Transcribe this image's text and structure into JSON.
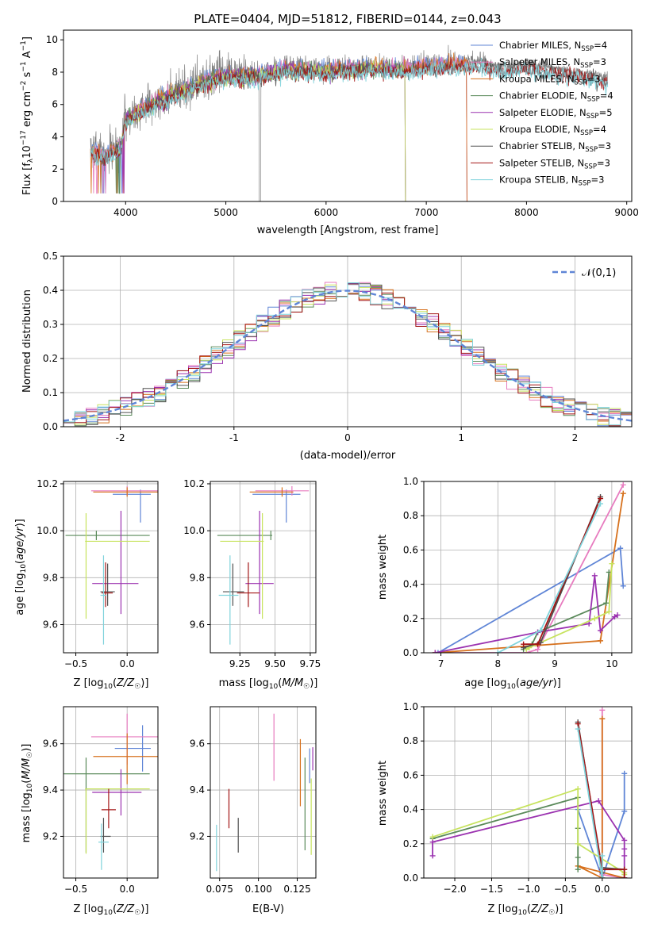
{
  "figure_title": "PLATE=0404, MJD=51812, FIBERID=0144, z=0.043",
  "palette": [
    "#5f85d6",
    "#e77bbf",
    "#d6701c",
    "#5a8a5a",
    "#9b32b0",
    "#c7e35e",
    "#505050",
    "#a31515",
    "#7fd3db"
  ],
  "chart_data": [
    {
      "id": "spectrum",
      "type": "line",
      "title": "PLATE=0404, MJD=51812, FIBERID=0144, z=0.043",
      "xlabel": "wavelength [Angstrom, rest frame]",
      "ylabel": "Flux [f_λ 10^-17 erg cm^-2 s^-1 A^-1]",
      "xlim": [
        3380,
        9050
      ],
      "ylim": [
        0,
        10.6
      ],
      "xticks": [
        "4000",
        "5000",
        "6000",
        "7000",
        "8000",
        "9000"
      ],
      "yticks": [
        "0",
        "2",
        "4",
        "6",
        "8",
        "10"
      ],
      "data_series": {
        "name": "data",
        "color": "#808080",
        "x_range": [
          3650,
          8810
        ]
      },
      "continuum_anchors": {
        "x": [
          3650,
          3800,
          3950,
          4000,
          4100,
          4300,
          4500,
          4800,
          5000,
          5300,
          5600,
          6000,
          6400,
          6800,
          7000,
          7300,
          7500,
          7800,
          8000,
          8400,
          8800
        ],
        "y": [
          3.3,
          3.0,
          3.5,
          5.2,
          5.6,
          6.3,
          6.8,
          7.6,
          7.9,
          7.9,
          8.3,
          8.2,
          8.4,
          8.3,
          8.5,
          8.6,
          8.7,
          8.3,
          8.5,
          8.1,
          7.7
        ]
      },
      "legend": [
        {
          "prefix": "Chabrier MILES, N",
          "sub": "SSP",
          "suffix": "=4"
        },
        {
          "prefix": "Salpeter MILES, N",
          "sub": "SSP",
          "suffix": "=3"
        },
        {
          "prefix": "Kroupa MILES, N",
          "sub": "SSP",
          "suffix": "=3"
        },
        {
          "prefix": "Chabrier ELODIE, N",
          "sub": "SSP",
          "suffix": "=4"
        },
        {
          "prefix": "Salpeter ELODIE, N",
          "sub": "SSP",
          "suffix": "=5"
        },
        {
          "prefix": "Kroupa ELODIE, N",
          "sub": "SSP",
          "suffix": "=4"
        },
        {
          "prefix": "Chabrier STELIB, N",
          "sub": "SSP",
          "suffix": "=3"
        },
        {
          "prefix": "Salpeter STELIB, N",
          "sub": "SSP",
          "suffix": "=3"
        },
        {
          "prefix": "Kroupa STELIB, N",
          "sub": "SSP",
          "suffix": "=3"
        }
      ],
      "legend_placement": "upper-right",
      "model_x_range": [
        [
          3650,
          7420
        ],
        [
          3650,
          7420
        ],
        [
          3650,
          7420
        ],
        [
          3900,
          6800
        ],
        [
          3900,
          6800
        ],
        [
          3900,
          6800
        ],
        [
          3650,
          8810
        ],
        [
          3650,
          8810
        ],
        [
          3650,
          8810
        ]
      ]
    },
    {
      "id": "residuals",
      "type": "histogram",
      "xlabel": "(data-model)/error",
      "ylabel": "Normed distribution",
      "xlim": [
        -2.5,
        2.5
      ],
      "ylim": [
        0,
        0.5
      ],
      "xticks": [
        "-2",
        "-1",
        "0",
        "1",
        "2"
      ],
      "yticks": [
        "0.0",
        "0.1",
        "0.2",
        "0.3",
        "0.4",
        "0.5"
      ],
      "grid": true,
      "bins": {
        "start": -2.5,
        "width": 0.1,
        "count": 50
      },
      "reference": {
        "name": "𝒩(0,1)",
        "style": "dashed",
        "color": "#5f85d6"
      },
      "legend_placement": "upper-right"
    },
    {
      "id": "age-vs-Z",
      "type": "errorbar",
      "xlabel": "Z [log10(Z/Z☉)]",
      "ylabel": "age [log10(age/yr)]",
      "xlim": [
        -0.62,
        0.3
      ],
      "ylim": [
        9.48,
        10.21
      ],
      "xticks": [
        -0.5,
        0.0
      ],
      "yticks": [
        9.6,
        9.8,
        10.0,
        10.2
      ],
      "xtick_labels": [
        "−0.5",
        "0.0"
      ],
      "ytick_labels": [
        "9.6",
        "9.8",
        "10.0",
        "10.2"
      ],
      "grid": true,
      "points": [
        {
          "x": 0.13,
          "y": 10.155,
          "xerr": [
            0.27,
            0.1
          ],
          "yerr": [
            0.12,
            0.02
          ]
        },
        {
          "x": 0.0,
          "y": 10.17,
          "xerr": [
            0.35,
            0.32
          ],
          "yerr": [
            0.02,
            0.02
          ]
        },
        {
          "x": 0.0,
          "y": 10.165,
          "xerr": [
            0.33,
            0.31
          ],
          "yerr": [
            0.02,
            0.02
          ]
        },
        {
          "x": -0.3,
          "y": 9.98,
          "xerr": [
            0.3,
            0.52
          ],
          "yerr": [
            0.02,
            0.02
          ]
        },
        {
          "x": -0.06,
          "y": 9.775,
          "xerr": [
            0.28,
            0.17
          ],
          "yerr": [
            0.13,
            0.31
          ]
        },
        {
          "x": -0.4,
          "y": 9.955,
          "xerr": [
            0.01,
            0.62
          ],
          "yerr": [
            0.33,
            0.12
          ]
        },
        {
          "x": -0.19,
          "y": 9.74,
          "xerr": [
            0.07,
            0.07
          ],
          "yerr": [
            0.06,
            0.12
          ]
        },
        {
          "x": -0.21,
          "y": 9.735,
          "xerr": [
            0.04,
            0.07
          ],
          "yerr": [
            0.06,
            0.13
          ]
        },
        {
          "x": -0.23,
          "y": 9.725,
          "xerr": [
            0.03,
            0.03
          ],
          "yerr": [
            0.21,
            0.17
          ]
        }
      ]
    },
    {
      "id": "age-vs-mass",
      "type": "errorbar",
      "xlabel": "mass [log10(M/M☉)]",
      "ylabel": "",
      "xlim": [
        9.04,
        9.79
      ],
      "ylim": [
        9.48,
        10.21
      ],
      "xticks": [
        9.25,
        9.5,
        9.75
      ],
      "yticks": [
        9.6,
        9.8,
        10.0,
        10.2
      ],
      "xtick_labels": [
        "9.25",
        "9.50",
        "9.75"
      ],
      "ytick_labels": [
        "9.6",
        "9.8",
        "10.0",
        "10.2"
      ],
      "grid": true,
      "points": [
        {
          "x": 9.58,
          "y": 10.155,
          "xerr": [
            0.24,
            0.1
          ],
          "yerr": [
            0.12,
            0.02
          ]
        },
        {
          "x": 9.62,
          "y": 10.17,
          "xerr": [
            0.26,
            0.12
          ],
          "yerr": [
            0.02,
            0.02
          ]
        },
        {
          "x": 9.55,
          "y": 10.165,
          "xerr": [
            0.23,
            0.08
          ],
          "yerr": [
            0.02,
            0.02
          ]
        },
        {
          "x": 9.47,
          "y": 9.98,
          "xerr": [
            0.38,
            0.01
          ],
          "yerr": [
            0.02,
            0.02
          ]
        },
        {
          "x": 9.39,
          "y": 9.775,
          "xerr": [
            0.1,
            0.1
          ],
          "yerr": [
            0.13,
            0.31
          ]
        },
        {
          "x": 9.41,
          "y": 9.955,
          "xerr": [
            0.3,
            0.01
          ],
          "yerr": [
            0.33,
            0.12
          ]
        },
        {
          "x": 9.2,
          "y": 9.74,
          "xerr": [
            0.07,
            0.08
          ],
          "yerr": [
            0.06,
            0.12
          ]
        },
        {
          "x": 9.31,
          "y": 9.735,
          "xerr": [
            0.08,
            0.08
          ],
          "yerr": [
            0.06,
            0.13
          ]
        },
        {
          "x": 9.18,
          "y": 9.725,
          "xerr": [
            0.08,
            0.06
          ],
          "yerr": [
            0.21,
            0.17
          ]
        }
      ]
    },
    {
      "id": "mass-weight-vs-age",
      "type": "line",
      "xlabel": "age [log10(age/yr)]",
      "ylabel": "mass weight",
      "xlim": [
        6.7,
        10.35
      ],
      "ylim": [
        0,
        1.0
      ],
      "xticks": [
        7,
        8,
        9,
        10
      ],
      "yticks": [
        0.0,
        0.2,
        0.4,
        0.6,
        0.8,
        1.0
      ],
      "xtick_labels": [
        "7",
        "8",
        "9",
        "10"
      ],
      "ytick_labels": [
        "0.0",
        "0.2",
        "0.4",
        "0.6",
        "0.8",
        "1.0"
      ],
      "grid": true,
      "series": [
        {
          "x": [
            6.95,
            10.15,
            10.2
          ],
          "y": [
            0.0,
            0.61,
            0.39
          ]
        },
        {
          "x": [
            6.9,
            8.5,
            8.7,
            10.2
          ],
          "y": [
            0.0,
            0.0,
            0.02,
            0.98
          ]
        },
        {
          "x": [
            6.9,
            9.8,
            10.2
          ],
          "y": [
            0.0,
            0.07,
            0.93
          ]
        },
        {
          "x": [
            8.45,
            8.6,
            8.7,
            9.9,
            9.95
          ],
          "y": [
            0.02,
            0.05,
            0.12,
            0.29,
            0.47
          ]
        },
        {
          "x": [
            6.9,
            8.7,
            9.6,
            9.7,
            9.8,
            10.05,
            10.1
          ],
          "y": [
            0.0,
            0.12,
            0.17,
            0.45,
            0.13,
            0.21,
            0.22
          ]
        },
        {
          "x": [
            8.5,
            8.55,
            9.7,
            9.95,
            10.0
          ],
          "y": [
            0.02,
            0.03,
            0.2,
            0.24,
            0.52
          ]
        },
        {
          "x": [
            8.45,
            8.75,
            9.8
          ],
          "y": [
            0.03,
            0.06,
            0.91
          ]
        },
        {
          "x": [
            8.45,
            8.7,
            9.8
          ],
          "y": [
            0.05,
            0.05,
            0.9
          ]
        },
        {
          "x": [
            8.0,
            8.75,
            9.8
          ],
          "y": [
            0.0,
            0.13,
            0.87
          ]
        }
      ]
    },
    {
      "id": "mass-vs-Z",
      "type": "errorbar",
      "xlabel": "Z [log10(Z/Z☉)]",
      "ylabel": "mass [log10(M/M☉)]",
      "xlim": [
        -0.62,
        0.3
      ],
      "ylim": [
        9.02,
        9.76
      ],
      "xticks": [
        -0.5,
        0.0
      ],
      "yticks": [
        9.2,
        9.4,
        9.6
      ],
      "xtick_labels": [
        "−0.5",
        "0.0"
      ],
      "ytick_labels": [
        "9.2",
        "9.4",
        "9.6"
      ],
      "grid": true,
      "points": [
        {
          "x": 0.15,
          "y": 9.58,
          "xerr": [
            0.27,
            0.08
          ],
          "yerr": [
            0.1,
            0.1
          ]
        },
        {
          "x": 0.0,
          "y": 9.63,
          "xerr": [
            0.35,
            0.32
          ],
          "yerr": [
            0.12,
            0.1
          ]
        },
        {
          "x": 0.0,
          "y": 9.545,
          "xerr": [
            0.33,
            0.31
          ],
          "yerr": [
            0.12,
            0.1
          ]
        },
        {
          "x": -0.4,
          "y": 9.47,
          "xerr": [
            0.22,
            0.62
          ],
          "yerr": [
            0.34,
            0.07
          ]
        },
        {
          "x": -0.06,
          "y": 9.39,
          "xerr": [
            0.28,
            0.2
          ],
          "yerr": [
            0.1,
            0.1
          ]
        },
        {
          "x": -0.4,
          "y": 9.405,
          "xerr": [
            0.01,
            0.62
          ],
          "yerr": [
            0.28,
            0.0
          ]
        },
        {
          "x": -0.23,
          "y": 9.2,
          "xerr": [
            0.03,
            0.07
          ],
          "yerr": [
            0.07,
            0.08
          ]
        },
        {
          "x": -0.18,
          "y": 9.315,
          "xerr": [
            0.07,
            0.07
          ],
          "yerr": [
            0.08,
            0.09
          ]
        },
        {
          "x": -0.25,
          "y": 9.175,
          "xerr": [
            0.03,
            0.07
          ],
          "yerr": [
            0.12,
            0.08
          ]
        }
      ]
    },
    {
      "id": "mass-vs-EBV",
      "type": "errorbar",
      "xlabel": "E(B-V)",
      "ylabel": "",
      "xlim": [
        0.069,
        0.137
      ],
      "ylim": [
        9.02,
        9.76
      ],
      "xticks": [
        0.075,
        0.1,
        0.125
      ],
      "yticks": [
        9.2,
        9.4,
        9.6
      ],
      "xtick_labels": [
        "0.075",
        "0.100",
        "0.125"
      ],
      "ytick_labels": [
        "9.2",
        "9.4",
        "9.6"
      ],
      "grid": true,
      "points": [
        {
          "x": 0.133,
          "y": 9.48,
          "xerr": [
            0.0,
            0.0
          ],
          "yerr": [
            0.05,
            0.1
          ]
        },
        {
          "x": 0.11,
          "y": 9.63,
          "xerr": [
            0.0,
            0.0
          ],
          "yerr": [
            0.19,
            0.1
          ]
        },
        {
          "x": 0.127,
          "y": 9.48,
          "xerr": [
            0.0,
            0.0
          ],
          "yerr": [
            0.15,
            0.14
          ]
        },
        {
          "x": 0.13,
          "y": 9.34,
          "xerr": [
            0.0,
            0.0
          ],
          "yerr": [
            0.2,
            0.2
          ]
        },
        {
          "x": 0.135,
          "y": 9.525,
          "xerr": [
            0.0,
            0.0
          ],
          "yerr": [
            0.04,
            0.06
          ]
        },
        {
          "x": 0.134,
          "y": 9.3,
          "xerr": [
            0.0,
            0.0
          ],
          "yerr": [
            0.18,
            0.15
          ]
        },
        {
          "x": 0.087,
          "y": 9.2,
          "xerr": [
            0.0,
            0.0
          ],
          "yerr": [
            0.07,
            0.08
          ]
        },
        {
          "x": 0.081,
          "y": 9.315,
          "xerr": [
            0.0,
            0.0
          ],
          "yerr": [
            0.08,
            0.09
          ]
        },
        {
          "x": 0.073,
          "y": 9.15,
          "xerr": [
            0.0,
            0.0
          ],
          "yerr": [
            0.1,
            0.1
          ]
        }
      ]
    },
    {
      "id": "mass-weight-vs-Z",
      "type": "line",
      "xlabel": "Z [log10(Z/Z☉)]",
      "ylabel": "mass weight",
      "xlim": [
        -2.42,
        0.4
      ],
      "ylim": [
        0,
        1.0
      ],
      "xticks": [
        -2.0,
        -1.5,
        -1.0,
        -0.5,
        0.0
      ],
      "yticks": [
        0.0,
        0.2,
        0.4,
        0.6,
        0.8,
        1.0
      ],
      "xtick_labels": [
        "−2.0",
        "−1.5",
        "−1.0",
        "−0.5",
        "0.0"
      ],
      "ytick_labels": [
        "0.0",
        "0.2",
        "0.4",
        "0.6",
        "0.8",
        "1.0"
      ],
      "grid": true,
      "series": [
        {
          "x": [
            -0.33,
            0.0,
            0.3,
            0.3
          ],
          "y": [
            0.4,
            0.0,
            0.39,
            0.61
          ]
        },
        {
          "x": [
            0.0,
            0.0,
            0.3,
            0.3
          ],
          "y": [
            0.98,
            0.02,
            0.0,
            0.0
          ]
        },
        {
          "x": [
            0.0,
            0.0,
            -0.33,
            0.3
          ],
          "y": [
            0.93,
            0.0,
            0.07,
            0.0
          ]
        },
        {
          "x": [
            -2.3,
            -0.33,
            -0.33,
            -0.33,
            -0.33
          ],
          "y": [
            0.23,
            0.47,
            0.29,
            0.12,
            0.05
          ]
        },
        {
          "x": [
            -2.3,
            -2.3,
            -0.05,
            0.3,
            0.3,
            0.3,
            0.3
          ],
          "y": [
            0.13,
            0.21,
            0.45,
            0.22,
            0.13,
            0.17,
            0.0
          ]
        },
        {
          "x": [
            -2.3,
            -0.33,
            -0.33,
            0.3,
            0.3
          ],
          "y": [
            0.24,
            0.52,
            0.2,
            0.03,
            0.02
          ]
        },
        {
          "x": [
            -0.33,
            0.0,
            0.0,
            0.3
          ],
          "y": [
            0.91,
            0.03,
            0.06,
            0.05
          ]
        },
        {
          "x": [
            -0.33,
            0.0,
            0.3,
            0.3
          ],
          "y": [
            0.9,
            0.05,
            0.05,
            0.0
          ]
        },
        {
          "x": [
            -0.33,
            0.0,
            0.0
          ],
          "y": [
            0.87,
            0.0,
            0.13
          ]
        }
      ]
    }
  ]
}
